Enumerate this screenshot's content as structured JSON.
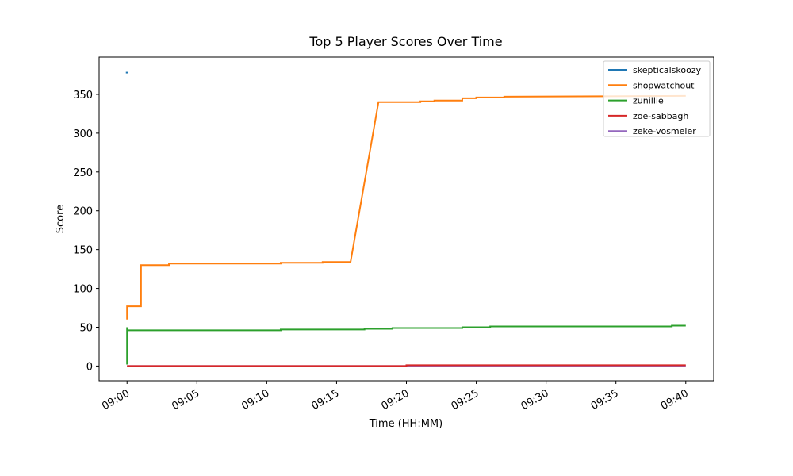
{
  "chart_data": {
    "type": "line",
    "title": "Top 5 Player Scores Over Time",
    "x_label": "Time (HH:MM)",
    "y_label": "Score",
    "xlim": [
      "08:58",
      "09:42"
    ],
    "xticks": [
      "09:00",
      "09:05",
      "09:10",
      "09:15",
      "09:20",
      "09:25",
      "09:30",
      "09:35",
      "09:40"
    ],
    "ylim": [
      -19,
      398
    ],
    "yticks": [
      0,
      50,
      100,
      150,
      200,
      250,
      300,
      350
    ],
    "grid": false,
    "legend": "upper right",
    "series": [
      {
        "name": "skepticalskoozy",
        "color": "#1f77b4",
        "x": [
          "09:00"
        ],
        "values": [
          378
        ]
      },
      {
        "name": "shopwatchout",
        "color": "#ff7f0e",
        "x": [
          "09:00",
          "09:00",
          "09:01",
          "09:01",
          "09:01",
          "09:03",
          "09:03",
          "09:11",
          "09:11",
          "09:14",
          "09:14",
          "09:16",
          "09:18",
          "09:21",
          "09:21",
          "09:22",
          "09:22",
          "09:24",
          "09:24",
          "09:25",
          "09:25",
          "09:27",
          "09:27",
          "09:40"
        ],
        "values": [
          60,
          77,
          77,
          95,
          130,
          130,
          132,
          132,
          133,
          133,
          134,
          134,
          340,
          340,
          341,
          341,
          342,
          342,
          345,
          345,
          346,
          346,
          347,
          348
        ]
      },
      {
        "name": "zunillie",
        "color": "#2ca02c",
        "x": [
          "09:00",
          "09:00",
          "09:00",
          "09:11",
          "09:11",
          "09:17",
          "09:17",
          "09:19",
          "09:19",
          "09:24",
          "09:24",
          "09:26",
          "09:26",
          "09:39",
          "09:39",
          "09:40"
        ],
        "values": [
          50,
          2,
          46,
          46,
          47,
          47,
          48,
          48,
          49,
          49,
          50,
          50,
          51,
          51,
          52,
          52
        ]
      },
      {
        "name": "zoe-sabbagh",
        "color": "#d62728",
        "x": [
          "09:00",
          "09:20",
          "09:20",
          "09:40"
        ],
        "values": [
          0,
          0,
          1,
          1
        ]
      },
      {
        "name": "zeke-vosmeier",
        "color": "#9467bd",
        "x": [
          "09:00",
          "09:40"
        ],
        "values": [
          0,
          0
        ]
      }
    ]
  }
}
